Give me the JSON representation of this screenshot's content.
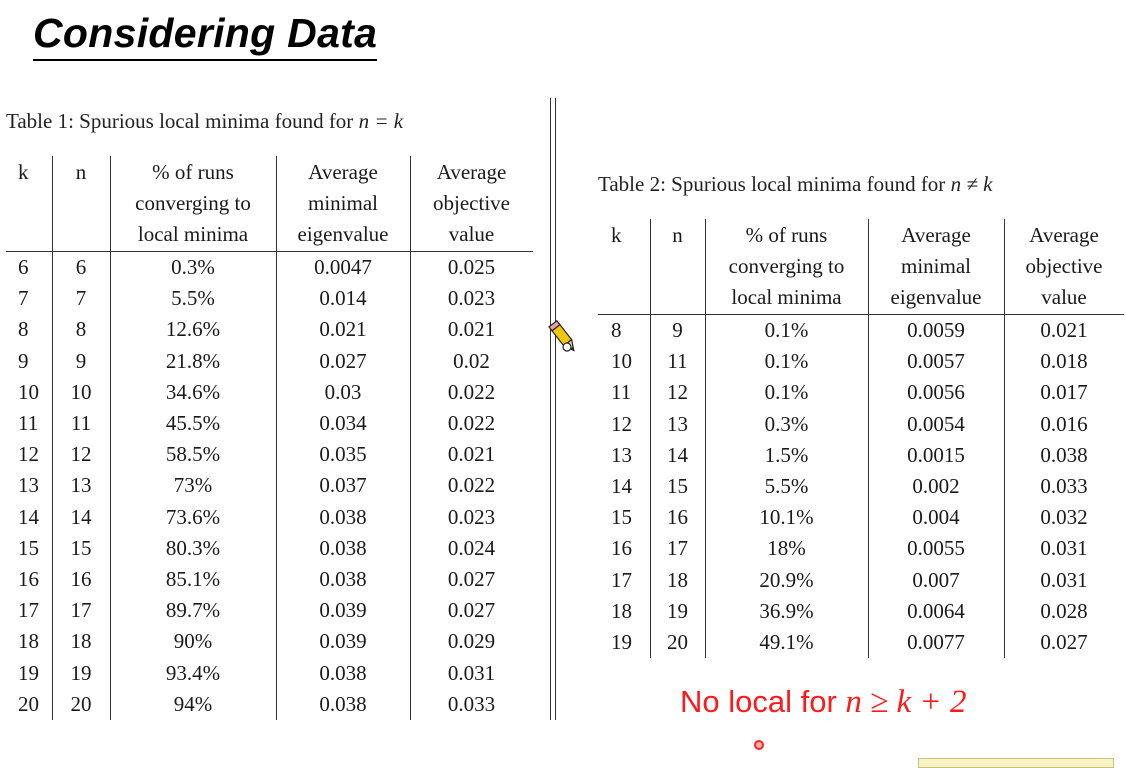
{
  "slide": {
    "title": "Considering Data"
  },
  "table1": {
    "caption_prefix": "Table 1: Spurious local minima found for",
    "caption_math": "n = k",
    "headers": {
      "k": "k",
      "n": "n",
      "pct": [
        "% of runs",
        "converging to",
        "local minima"
      ],
      "eig": [
        "Average",
        "minimal",
        "eigenvalue"
      ],
      "obj": [
        "Average",
        "objective",
        "value"
      ]
    },
    "rows": [
      [
        "6",
        "6",
        "0.3%",
        "0.0047",
        "0.025"
      ],
      [
        "7",
        "7",
        "5.5%",
        "0.014",
        "0.023"
      ],
      [
        "8",
        "8",
        "12.6%",
        "0.021",
        "0.021"
      ],
      [
        "9",
        "9",
        "21.8%",
        "0.027",
        "0.02"
      ],
      [
        "10",
        "10",
        "34.6%",
        "0.03",
        "0.022"
      ],
      [
        "11",
        "11",
        "45.5%",
        "0.034",
        "0.022"
      ],
      [
        "12",
        "12",
        "58.5%",
        "0.035",
        "0.021"
      ],
      [
        "13",
        "13",
        "73%",
        "0.037",
        "0.022"
      ],
      [
        "14",
        "14",
        "73.6%",
        "0.038",
        "0.023"
      ],
      [
        "15",
        "15",
        "80.3%",
        "0.038",
        "0.024"
      ],
      [
        "16",
        "16",
        "85.1%",
        "0.038",
        "0.027"
      ],
      [
        "17",
        "17",
        "89.7%",
        "0.039",
        "0.027"
      ],
      [
        "18",
        "18",
        "90%",
        "0.039",
        "0.029"
      ],
      [
        "19",
        "19",
        "93.4%",
        "0.038",
        "0.031"
      ],
      [
        "20",
        "20",
        "94%",
        "0.038",
        "0.033"
      ]
    ]
  },
  "table2": {
    "caption_prefix": "Table 2: Spurious local minima found for",
    "caption_math": "n ≠ k",
    "headers": {
      "k": "k",
      "n": "n",
      "pct": [
        "% of runs",
        "converging to",
        "local minima"
      ],
      "eig": [
        "Average",
        "minimal",
        "eigenvalue"
      ],
      "obj": [
        "Average",
        "objective",
        "value"
      ]
    },
    "rows": [
      [
        "8",
        "9",
        "0.1%",
        "0.0059",
        "0.021"
      ],
      [
        "10",
        "11",
        "0.1%",
        "0.0057",
        "0.018"
      ],
      [
        "11",
        "12",
        "0.1%",
        "0.0056",
        "0.017"
      ],
      [
        "12",
        "13",
        "0.3%",
        "0.0054",
        "0.016"
      ],
      [
        "13",
        "14",
        "1.5%",
        "0.0015",
        "0.038"
      ],
      [
        "14",
        "15",
        "5.5%",
        "0.002",
        "0.033"
      ],
      [
        "15",
        "16",
        "10.1%",
        "0.004",
        "0.032"
      ],
      [
        "16",
        "17",
        "18%",
        "0.0055",
        "0.031"
      ],
      [
        "17",
        "18",
        "20.9%",
        "0.007",
        "0.031"
      ],
      [
        "18",
        "19",
        "36.9%",
        "0.0064",
        "0.028"
      ],
      [
        "19",
        "20",
        "49.1%",
        "0.0077",
        "0.027"
      ]
    ]
  },
  "note": {
    "prefix": "No local for",
    "math": "n ≥ k + 2",
    "color": "#ff1a1a"
  },
  "icons": {
    "pencil": "pencil-icon",
    "laser": "laser-pointer-dot"
  }
}
